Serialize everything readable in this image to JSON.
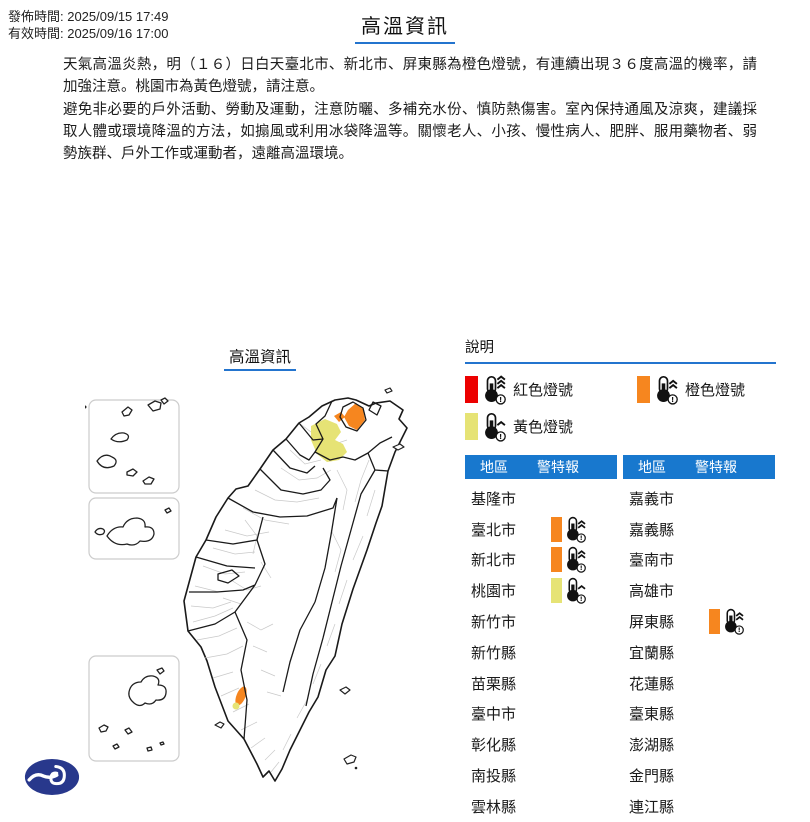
{
  "meta": {
    "publish_label": "發佈時間: 2025/09/15 17:49",
    "valid_label": "有效時間: 2025/09/16 17:00"
  },
  "title": "高溫資訊",
  "description": {
    "para1": "天氣高溫炎熱，明（１６）日白天臺北市、新北市、屏東縣為橙色燈號，有連續出現３６度高溫的機率，請加強注意。桃園市為黃色燈號，請注意。",
    "para2": "避免非必要的戶外活動、勞動及運動，注意防曬、多補充水份、慎防熱傷害。室內保持通風及涼爽，建議採取人體或環境降溫的方法，如搧風或利用冰袋降溫等。關懷老人、小孩、慢性病人、肥胖、服用藥物者、弱勢族群、戶外工作或運動者，遠離高溫環境。"
  },
  "map": {
    "title": "高溫資訊"
  },
  "legend": {
    "title": "說明",
    "items": [
      {
        "label": "紅色燈號",
        "level": "red",
        "waves": 3
      },
      {
        "label": "橙色燈號",
        "level": "orange",
        "waves": 2
      },
      {
        "label": "黃色燈號",
        "level": "yellow",
        "waves": 1
      }
    ]
  },
  "tables": {
    "header": {
      "region": "地區",
      "warning": "警特報"
    },
    "left": [
      {
        "name": "基隆市",
        "warning": null
      },
      {
        "name": "臺北市",
        "warning": "orange"
      },
      {
        "name": "新北市",
        "warning": "orange"
      },
      {
        "name": "桃園市",
        "warning": "yellow"
      },
      {
        "name": "新竹市",
        "warning": null
      },
      {
        "name": "新竹縣",
        "warning": null
      },
      {
        "name": "苗栗縣",
        "warning": null
      },
      {
        "name": "臺中市",
        "warning": null
      },
      {
        "name": "彰化縣",
        "warning": null
      },
      {
        "name": "南投縣",
        "warning": null
      },
      {
        "name": "雲林縣",
        "warning": null
      }
    ],
    "right": [
      {
        "name": "嘉義市",
        "warning": null
      },
      {
        "name": "嘉義縣",
        "warning": null
      },
      {
        "name": "臺南市",
        "warning": null
      },
      {
        "name": "高雄市",
        "warning": null
      },
      {
        "name": "屏東縣",
        "warning": "orange"
      },
      {
        "name": "宜蘭縣",
        "warning": null
      },
      {
        "name": "花蓮縣",
        "warning": null
      },
      {
        "name": "臺東縣",
        "warning": null
      },
      {
        "name": "澎湖縣",
        "warning": null
      },
      {
        "name": "金門縣",
        "warning": null
      },
      {
        "name": "連江縣",
        "warning": null
      }
    ]
  },
  "colors": {
    "red": "#EC0000",
    "orange": "#F6861F",
    "yellow": "#E6E375",
    "header_blue": "#1878CE",
    "underline_blue": "#2374CE",
    "logo_blue": "#28388C"
  }
}
